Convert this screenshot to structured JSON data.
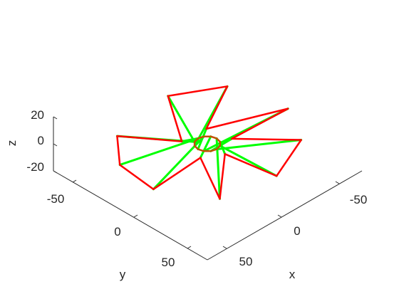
{
  "chart_data": {
    "type": "line3d",
    "title": "",
    "xlabel": "x",
    "ylabel": "y",
    "zlabel": "z",
    "xlim": [
      -80,
      80
    ],
    "ylim": [
      -80,
      80
    ],
    "zlim": [
      -25,
      25
    ],
    "x_ticks": [
      "-50",
      "0",
      "50"
    ],
    "y_ticks": [
      "-50",
      "0",
      "50"
    ],
    "z_ticks": [
      "20",
      "0",
      "-20"
    ],
    "grid": false,
    "legend": "none",
    "colors": {
      "outer_star": "#ff0000",
      "spokes": "#00ff00",
      "hub": "#c05000",
      "axes": "#262626"
    },
    "outer_star": {
      "valleys": [
        [
          14.3,
          10.3,
          0
        ],
        [
          13.0,
          -12.0,
          0
        ],
        [
          -7.5,
          -16.0,
          0
        ],
        [
          -17.0,
          0.0,
          0
        ],
        [
          -8.3,
          15.0,
          0
        ]
      ],
      "peaks": [
        [
          59.0,
          -21.0,
          0
        ],
        [
          38.4,
          -57.7,
          0
        ],
        [
          -9.5,
          -68.3,
          0
        ],
        [
          -42.0,
          -48.5,
          0
        ],
        [
          -60.3,
          -6.5,
          0
        ],
        [
          -52.0,
          40.0,
          0
        ],
        [
          -12.0,
          64.0,
          0
        ],
        [
          24.6,
          59.8,
          0
        ],
        [
          50.0,
          37.0,
          0
        ]
      ]
    },
    "hub": {
      "radius": 9,
      "points": 12
    }
  }
}
